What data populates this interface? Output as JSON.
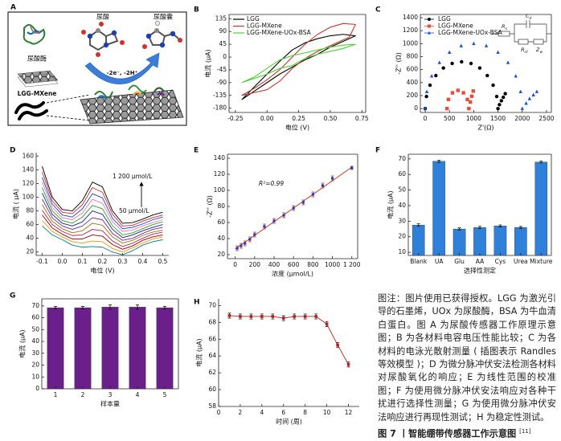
{
  "diagram_a": {
    "label": "A",
    "uric_acid": "尿酸",
    "allantoin": "尿酸囊",
    "uricase": "尿酸酶",
    "electrode": "LGG-MXene",
    "reaction": "-2e⁻, -2H⁺"
  },
  "chart_data": [
    {
      "panel": "B",
      "type": "line",
      "xlabel": "电位 (V)",
      "ylabel": "电流 (μA)",
      "xlim": [
        -0.3,
        0.78
      ],
      "xticks": [
        -0.25,
        {
          "value": 0,
          "label": "0.00"
        },
        0.25,
        {
          "value": 0.5,
          "label": "0.50"
        },
        0.75
      ],
      "ylim": [
        -195,
        150
      ],
      "yticks": [
        135,
        90,
        45,
        0,
        -45,
        -90,
        -135,
        -180
      ],
      "legend": "upper left",
      "series": [
        {
          "name": "LGG",
          "color": "#000000",
          "x": [
            -0.2,
            -0.1,
            0,
            0.1,
            0.2,
            0.3,
            0.4,
            0.5,
            0.6,
            0.7,
            0.6,
            0.5,
            0.4,
            0.3,
            0.2,
            0.1,
            0,
            -0.1,
            -0.2
          ],
          "values": [
            -150,
            -105,
            -60,
            -15,
            25,
            50,
            65,
            75,
            80,
            75,
            55,
            35,
            10,
            -10,
            -35,
            -60,
            -90,
            -120,
            -150
          ]
        },
        {
          "name": "LGG-MXene",
          "color": "#c0392b",
          "x": [
            -0.2,
            -0.1,
            0,
            0.1,
            0.2,
            0.3,
            0.4,
            0.5,
            0.6,
            0.7,
            0.65,
            0.5,
            0.4,
            0.3,
            0.2,
            0.1,
            0,
            -0.1,
            -0.2
          ],
          "values": [
            -135,
            -110,
            -80,
            -45,
            0,
            45,
            80,
            105,
            118,
            115,
            70,
            40,
            20,
            -5,
            -40,
            -85,
            -115,
            -125,
            -135
          ]
        },
        {
          "name": "LGG-MXene-UOx-BSA",
          "color": "#4cd137",
          "x": [
            -0.2,
            -0.1,
            0,
            0.1,
            0.2,
            0.3,
            0.4,
            0.5,
            0.6,
            0.7,
            0.6,
            0.5,
            0.4,
            0.3,
            0.2,
            0.1,
            0,
            -0.1,
            -0.2
          ],
          "values": [
            -90,
            -70,
            -40,
            -10,
            5,
            15,
            25,
            35,
            42,
            45,
            30,
            20,
            10,
            -5,
            -30,
            -40,
            -60,
            -75,
            -90
          ]
        }
      ]
    },
    {
      "panel": "C",
      "type": "scatter",
      "xlabel": "Z'(Ω)",
      "ylabel": "-Z'' (Ω)",
      "xlim": [
        -100,
        2600
      ],
      "xticks": [
        0,
        500,
        1000,
        1500,
        2000,
        2500
      ],
      "ylim": [
        -60,
        1450
      ],
      "yticks": [
        0,
        200,
        400,
        600,
        800,
        1000,
        1200,
        1400
      ],
      "legend": "upper left",
      "inset_labels": [
        {
          "text": "R",
          "sub": "s"
        },
        {
          "text": "C",
          "sub": "d"
        },
        {
          "text": "R",
          "sub": "ct"
        },
        {
          "text": "Z",
          "sub": "w"
        }
      ],
      "series": [
        {
          "name": "LGG",
          "color": "#000000",
          "marker": "circle",
          "x": [
            0,
            26,
            100,
            220,
            375,
            556,
            750,
            944,
            1125,
            1280,
            1400,
            1474,
            1500,
            1530,
            1570,
            1610,
            1650
          ],
          "values": [
            0,
            186,
            360,
            509,
            624,
            695,
            720,
            695,
            624,
            509,
            360,
            186,
            0,
            60,
            120,
            175,
            230
          ]
        },
        {
          "name": "LGG-MXene",
          "color": "#e74c3c",
          "marker": "square",
          "x": [
            450,
            480,
            562,
            675,
            788,
            870,
            900,
            930,
            960,
            990
          ],
          "values": [
            0,
            140,
            242,
            280,
            242,
            140,
            0,
            100,
            190,
            270
          ]
        },
        {
          "name": "LGG-MXene-UOx-BSA",
          "color": "#1f4fd6",
          "marker": "triangle",
          "x": [
            0,
            34,
            134,
            293,
            500,
            741,
            1000,
            1259,
            1500,
            1707,
            1866,
            1966,
            2000,
            2080,
            2150,
            2230,
            2300
          ],
          "values": [
            0,
            259,
            500,
            707,
            866,
            966,
            1000,
            966,
            866,
            707,
            500,
            259,
            0,
            80,
            150,
            210,
            260
          ]
        }
      ]
    },
    {
      "panel": "D",
      "type": "line",
      "xlabel": "电位 (V)",
      "ylabel": "电流 ( μA)",
      "xlim": [
        -0.13,
        0.53
      ],
      "xticks": [
        -0.1,
        {
          "value": 0,
          "label": "0.0"
        },
        0.1,
        0.2,
        0.3,
        0.4,
        0.5
      ],
      "ylim": [
        15,
        165
      ],
      "yticks": [
        20,
        40,
        60,
        80,
        100,
        120,
        140,
        160
      ],
      "annotations": [
        "1 200 μmol/L",
        "50 μmol/L"
      ],
      "x": [
        -0.1,
        -0.05,
        0,
        0.05,
        0.1,
        0.15,
        0.2,
        0.25,
        0.3,
        0.35,
        0.4,
        0.45,
        0.5
      ],
      "series": [
        {
          "color": "#000000",
          "values": [
            145,
            100,
            82,
            80,
            95,
            122,
            115,
            80,
            62,
            63,
            68,
            74,
            78
          ]
        },
        {
          "color": "#d62728",
          "values": [
            137,
            95,
            78,
            76,
            89,
            114,
            107,
            75,
            58,
            59,
            65,
            70,
            74
          ]
        },
        {
          "color": "#1f3fbf",
          "values": [
            129,
            90,
            74,
            71,
            83,
            105,
            99,
            69,
            54,
            56,
            61,
            67,
            71
          ]
        },
        {
          "color": "#e377c2",
          "values": [
            122,
            85,
            70,
            67,
            77,
            97,
            91,
            64,
            50,
            52,
            58,
            63,
            67
          ]
        },
        {
          "color": "#2ca02c",
          "values": [
            114,
            80,
            66,
            62,
            71,
            88,
            83,
            58,
            45,
            48,
            54,
            60,
            64
          ]
        },
        {
          "color": "#1a237e",
          "values": [
            106,
            75,
            62,
            58,
            64,
            80,
            75,
            53,
            41,
            45,
            51,
            56,
            60
          ]
        },
        {
          "color": "#7b1fa2",
          "values": [
            97,
            70,
            58,
            53,
            58,
            70,
            67,
            47,
            37,
            40,
            47,
            53,
            56
          ]
        },
        {
          "color": "#808000",
          "values": [
            89,
            65,
            54,
            48,
            51,
            62,
            59,
            42,
            33,
            37,
            44,
            49,
            52
          ]
        },
        {
          "color": "#c2185b",
          "values": [
            81,
            60,
            50,
            44,
            45,
            53,
            51,
            36,
            28,
            33,
            40,
            46,
            49
          ]
        },
        {
          "color": "#8b0000",
          "values": [
            74,
            55,
            46,
            39,
            39,
            45,
            43,
            31,
            24,
            29,
            37,
            42,
            45
          ]
        },
        {
          "color": "#ff8c00",
          "values": [
            66,
            50,
            42,
            35,
            33,
            36,
            35,
            25,
            20,
            26,
            33,
            39,
            42
          ]
        },
        {
          "color": "#008080",
          "values": [
            58,
            45,
            38,
            30,
            27,
            28,
            27,
            20,
            16,
            22,
            30,
            35,
            38
          ]
        }
      ]
    },
    {
      "panel": "E",
      "type": "scatter",
      "xlabel": "浓度 (μmol/L)",
      "ylabel": "-Z'' (Ω)",
      "xlim": [
        -80,
        1260
      ],
      "xticks": [
        0,
        200,
        400,
        600,
        800,
        1000,
        {
          "value": 1200,
          "label": "1 200"
        }
      ],
      "ylim": [
        15,
        145
      ],
      "yticks": [
        20,
        40,
        60,
        80,
        100,
        120,
        140
      ],
      "annotations": [
        "R²=0.99"
      ],
      "series": [
        {
          "color": "#1f3fbf",
          "marker": "square",
          "error_color": "#c0392b",
          "x": [
            20,
            60,
            100,
            150,
            200,
            300,
            400,
            500,
            600,
            700,
            800,
            900,
            1000,
            1200
          ],
          "values": [
            28,
            31,
            34,
            39,
            45,
            55,
            62,
            69,
            78,
            85,
            95,
            106,
            115,
            128
          ],
          "errors": [
            3,
            3,
            3,
            3,
            3,
            3,
            3,
            3,
            3,
            3,
            3,
            3,
            3,
            2
          ]
        }
      ],
      "fit": {
        "color": "#c0392b",
        "x": [
          0,
          1200
        ],
        "values": [
          27,
          129
        ]
      }
    },
    {
      "panel": "F",
      "type": "bar",
      "xlabel": "选择性测定",
      "ylabel": "电流 (μA)",
      "color": "#2f80d8",
      "categories": [
        "Blank",
        "UA",
        "Glu",
        "AA",
        "Cys",
        "Urea",
        "Mixture"
      ],
      "values": [
        27.5,
        68.5,
        25,
        26,
        27,
        26,
        68
      ],
      "errors": [
        0.8,
        0.7,
        0.7,
        0.7,
        0.6,
        0.6,
        0.6
      ],
      "ylim": [
        8,
        73
      ],
      "yticks": [
        10,
        20,
        30,
        40,
        50,
        60,
        70
      ]
    },
    {
      "panel": "G",
      "type": "bar",
      "xlabel": "样本量",
      "ylabel": "电流 (μA)",
      "color": "#6b1f8a",
      "categories": [
        "1",
        "2",
        "3",
        "4",
        "5"
      ],
      "values": [
        68.5,
        68.5,
        69,
        69,
        68.5
      ],
      "errors": [
        1,
        1,
        1.8,
        1.8,
        1
      ],
      "ylim": [
        0,
        76
      ],
      "yticks": [
        0,
        10,
        20,
        30,
        40,
        50,
        60,
        70
      ]
    },
    {
      "panel": "H",
      "type": "line",
      "xlabel": "时间 (周)",
      "ylabel": "电流 (μA)",
      "markers": true,
      "xlim": [
        0,
        13
      ],
      "xticks": [
        0,
        2,
        4,
        6,
        8,
        10,
        12
      ],
      "ylim": [
        58,
        70.8
      ],
      "yticks": [
        58,
        60,
        62,
        64,
        66,
        68,
        70
      ],
      "x": [
        1,
        2,
        3,
        4,
        5,
        6,
        7,
        8,
        9,
        10,
        11,
        12
      ],
      "series": [
        {
          "color": "#b22222",
          "values": [
            68.8,
            68.7,
            68.7,
            68.7,
            68.7,
            68.5,
            68.7,
            68.7,
            68.7,
            67.8,
            65.3,
            63.0
          ],
          "errors": [
            0.3,
            0.3,
            0.3,
            0.3,
            0.3,
            0.3,
            0.3,
            0.3,
            0.3,
            0.3,
            0.3,
            0.3
          ]
        }
      ]
    }
  ],
  "caption": {
    "text": "图注：图片使用已获得授权。LGG 为激光引导的石墨烯，UOx 为尿酸酶，BSA 为牛血清白蛋白。图 A 为尿酸传感器工作原理示意图；B 为各材料电容电压性能比较；C 为各材料的电泳光散射测量 ( 插图表示 Randles 等效模型 )；D 为微分脉冲伏安法检测各材料对尿酸氧化的响应；E 为线性范围的校准图；F 为使用微分脉冲伏安法响应对各种干扰进行选择性测量；G 为使用微分脉冲伏安法响应进行再现性测试；H 为稳定性测试。",
    "title": "图 7 丨智能绷带传感器工作示意图",
    "ref": "[11]"
  }
}
